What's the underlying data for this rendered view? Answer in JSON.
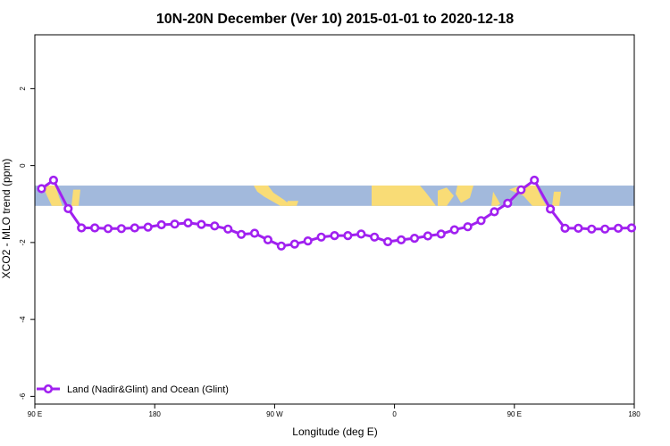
{
  "chart_data": {
    "type": "line",
    "title": "10N-20N December (Ver 10)   2015-01-01 to 2020-12-18",
    "xlabel": "Longitude (deg E)",
    "ylabel": "XCO2 - MLO trend (ppm)",
    "xlim": [
      90,
      540
    ],
    "ylim": [
      -6.2,
      3.4
    ],
    "x_ticks": [
      {
        "value": 90,
        "label": "90 E"
      },
      {
        "value": 180,
        "label": "180"
      },
      {
        "value": 270,
        "label": "90 W"
      },
      {
        "value": 360,
        "label": "0"
      },
      {
        "value": 450,
        "label": "90 E"
      },
      {
        "value": 540,
        "label": "180"
      }
    ],
    "y_ticks": [
      {
        "value": 2,
        "label": "2"
      },
      {
        "value": 0,
        "label": "0"
      },
      {
        "value": -2,
        "label": "-2"
      },
      {
        "value": -4,
        "label": "-4"
      },
      {
        "value": -6,
        "label": "-6"
      }
    ],
    "grid": false,
    "legend_position": "bottom-left",
    "colors": {
      "series": "#a020f0",
      "ocean": "#a2b9dc",
      "land": "#f9dc76"
    },
    "map_band": {
      "ymin": -1.05,
      "ymax": -0.52
    },
    "series": [
      {
        "name": "Land (Nadir&Glint) and Ocean (Glint)",
        "x": [
          95,
          104,
          115,
          125,
          135,
          145,
          155,
          165,
          175,
          185,
          195,
          205,
          215,
          225,
          235,
          245,
          255,
          265,
          275,
          285,
          295,
          305,
          315,
          325,
          335,
          345,
          355,
          365,
          375,
          385,
          395,
          405,
          415,
          425,
          435,
          445,
          455,
          465,
          477,
          488,
          498,
          508,
          518,
          528,
          538
        ],
        "values": [
          -0.6,
          -0.38,
          -1.12,
          -1.62,
          -1.62,
          -1.64,
          -1.64,
          -1.62,
          -1.6,
          -1.54,
          -1.52,
          -1.49,
          -1.53,
          -1.57,
          -1.65,
          -1.79,
          -1.76,
          -1.93,
          -2.09,
          -2.04,
          -1.96,
          -1.86,
          -1.82,
          -1.82,
          -1.78,
          -1.86,
          -1.98,
          -1.93,
          -1.89,
          -1.83,
          -1.78,
          -1.67,
          -1.59,
          -1.43,
          -1.2,
          -0.98,
          -0.63,
          -0.38,
          -1.13,
          -1.63,
          -1.63,
          -1.65,
          -1.65,
          -1.63,
          -1.62
        ]
      }
    ]
  }
}
